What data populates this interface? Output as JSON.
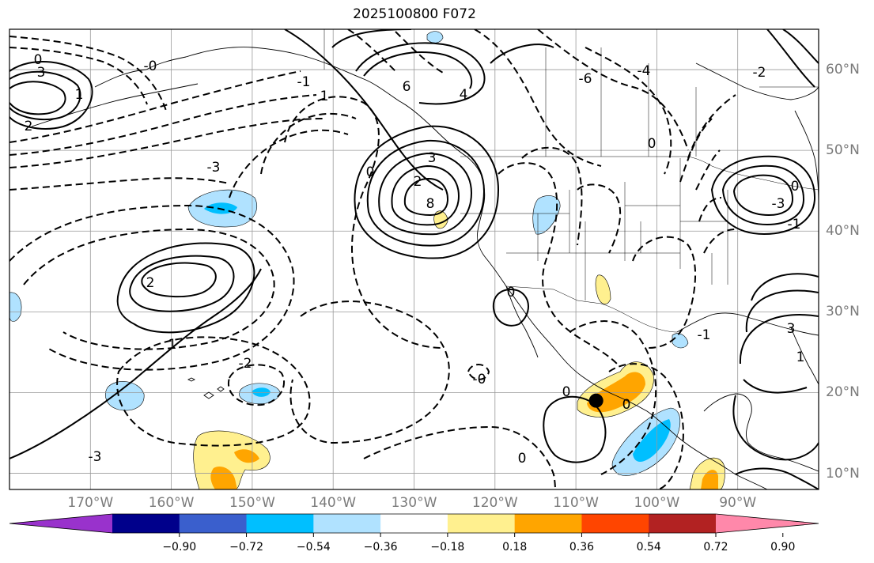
{
  "title": "2025100800 F072",
  "map": {
    "lon_labels": [
      {
        "text": "170°W",
        "lon": -170
      },
      {
        "text": "160°W",
        "lon": -160
      },
      {
        "text": "150°W",
        "lon": -150
      },
      {
        "text": "140°W",
        "lon": -140
      },
      {
        "text": "130°W",
        "lon": -130
      },
      {
        "text": "120°W",
        "lon": -120
      },
      {
        "text": "110°W",
        "lon": -110
      },
      {
        "text": "100°W",
        "lon": -100
      },
      {
        "text": "90°W",
        "lon": -90
      }
    ],
    "lat_labels": [
      {
        "text": "60°N",
        "lat": 60
      },
      {
        "text": "50°N",
        "lat": 50
      },
      {
        "text": "40°N",
        "lat": 40
      },
      {
        "text": "30°N",
        "lat": 30
      },
      {
        "text": "20°N",
        "lat": 20
      },
      {
        "text": "10°N",
        "lat": 10
      }
    ],
    "extent": {
      "lon_min": -180,
      "lon_max": -80,
      "lat_min": 8,
      "lat_max": 65
    },
    "marker": {
      "lon": -107.5,
      "lat": 19
    }
  },
  "colorbar": {
    "ticks": [
      "−0.90",
      "−0.72",
      "−0.54",
      "−0.36",
      "−0.18",
      "0.18",
      "0.36",
      "0.54",
      "0.72",
      "0.90"
    ],
    "colors": [
      "#9932cc",
      "#00008b",
      "#3a5fcd",
      "#00bfff",
      "#b0e2ff",
      "#ffffff",
      "#fff08f",
      "#ffa500",
      "#ff4500",
      "#b22222",
      "#ff88aa"
    ]
  },
  "contour_labels": [
    "0",
    "3",
    "2",
    "1",
    "-3",
    "6",
    "4",
    "8",
    "0",
    "1",
    "2",
    "-0",
    "-1",
    "3",
    "-2",
    "-6",
    "-4",
    "0",
    "-3",
    "-1",
    "-2",
    "0",
    "1",
    "2",
    "3",
    "1",
    "0",
    "0",
    "-3",
    "0",
    "0",
    "-1",
    "-0"
  ]
}
